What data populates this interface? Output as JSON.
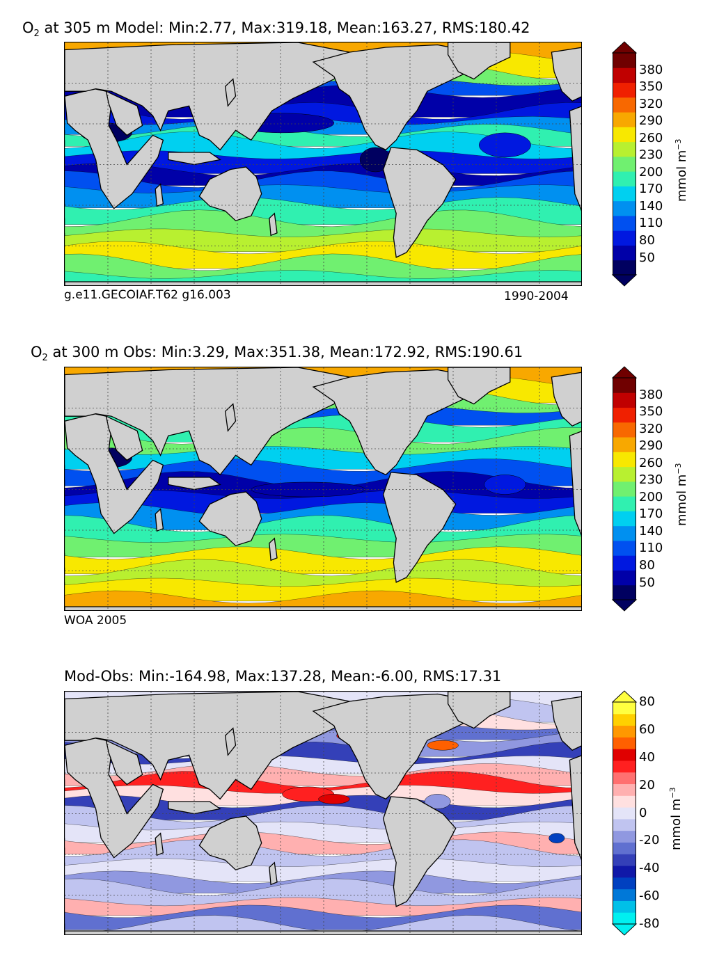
{
  "colors": {
    "land": "#d0d0d0",
    "o2_levels": [
      "#000060",
      "#0000a8",
      "#0018e0",
      "#0050f0",
      "#0090f0",
      "#00d0f0",
      "#30f0b0",
      "#70f070",
      "#b8f030",
      "#f8e800",
      "#f8a800",
      "#f86800",
      "#f02000",
      "#c00000",
      "#700000"
    ],
    "diff_levels": [
      "#00f0f0",
      "#00c0e8",
      "#0078d8",
      "#0040c0",
      "#1018a8",
      "#3440b8",
      "#6070d0",
      "#9098e0",
      "#c0c4f0",
      "#e4e4f8",
      "#ffe0e0",
      "#ffb0b0",
      "#ff7070",
      "#ff2020",
      "#e00000",
      "#ff6000",
      "#ff9800",
      "#ffd000",
      "#ffff40"
    ]
  },
  "chart_data": [
    {
      "type": "heatmap",
      "title": "O2 at 305 m Model: Min:2.77, Max:319.18, Mean:163.27, RMS:180.42",
      "title_parts": {
        "symbol": "O",
        "subscript": "2",
        "rest": " at 305 m Model: Min:2.77, Max:319.18, Mean:163.27, RMS:180.42"
      },
      "stats": {
        "min": 2.77,
        "max": 319.18,
        "mean": 163.27,
        "rms": 180.42
      },
      "depth_m": 305,
      "left_note": "g.e11.GECOIAF.T62 g16.003",
      "right_note": "1990-2004",
      "colorbar": {
        "ticks": [
          "50",
          "80",
          "110",
          "140",
          "170",
          "200",
          "230",
          "260",
          "290",
          "320",
          "350",
          "380"
        ],
        "range": [
          20,
          410
        ],
        "unit_text": "mmol m",
        "unit_exp": "−3",
        "extend": "both"
      }
    },
    {
      "type": "heatmap",
      "title": "O2 at 300 m Obs: Min:3.29, Max:351.38, Mean:172.92, RMS:190.61",
      "title_parts": {
        "symbol": "O",
        "subscript": "2",
        "rest": " at 300 m Obs: Min:3.29, Max:351.38, Mean:172.92, RMS:190.61"
      },
      "stats": {
        "min": 3.29,
        "max": 351.38,
        "mean": 172.92,
        "rms": 190.61
      },
      "depth_m": 300,
      "left_note": "WOA 2005",
      "right_note": "",
      "colorbar": {
        "ticks": [
          "50",
          "80",
          "110",
          "140",
          "170",
          "200",
          "230",
          "260",
          "290",
          "320",
          "350",
          "380"
        ],
        "range": [
          20,
          410
        ],
        "unit_text": "mmol m",
        "unit_exp": "−3",
        "extend": "both"
      }
    },
    {
      "type": "heatmap",
      "title": "Mod-Obs: Min:-164.98, Max:137.28, Mean:-6.00, RMS:17.31",
      "stats": {
        "min": -164.98,
        "max": 137.28,
        "mean": -6.0,
        "rms": 17.31
      },
      "left_note": "",
      "right_note": "",
      "colorbar": {
        "ticks": [
          "-80",
          "-60",
          "-40",
          "-20",
          "0",
          "20",
          "40",
          "60",
          "80"
        ],
        "range": [
          -80,
          80
        ],
        "unit_text": "mmol m",
        "unit_exp": "−3",
        "extend": "both"
      }
    }
  ]
}
